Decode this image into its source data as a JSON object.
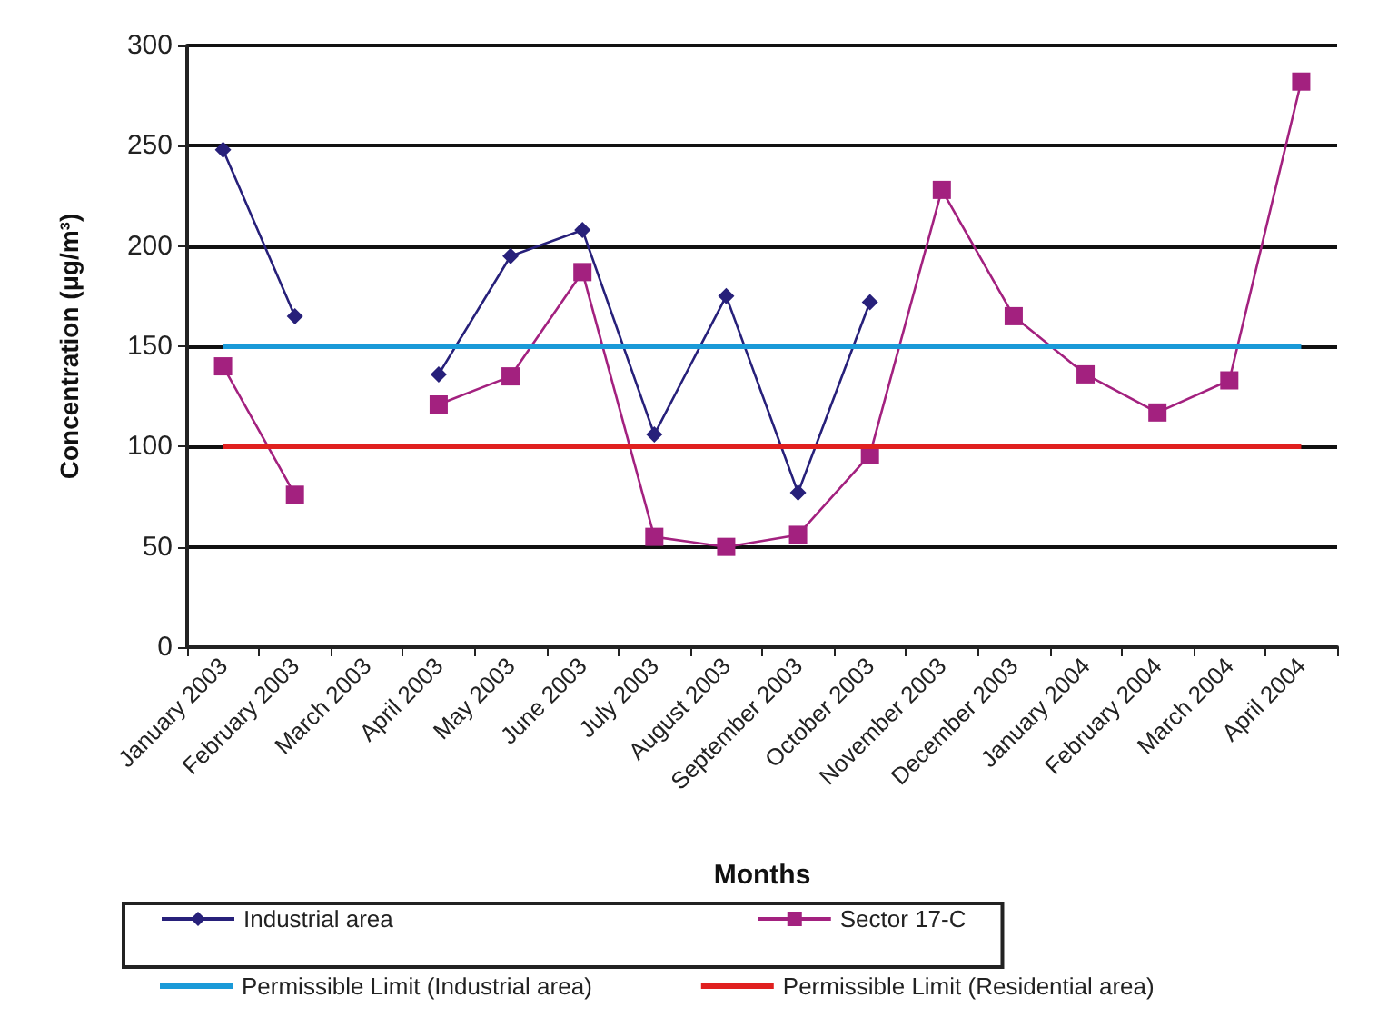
{
  "chart_data": {
    "type": "line",
    "xlabel": "Months",
    "ylabel": "Concentration (μg/m³)",
    "categories": [
      "January 2003",
      "February 2003",
      "March 2003",
      "April 2003",
      "May 2003",
      "June 2003",
      "July 2003",
      "August 2003",
      "September 2003",
      "October 2003",
      "November 2003",
      "December 2003",
      "January 2004",
      "February 2004",
      "March 2004",
      "April 2004"
    ],
    "series": [
      {
        "name": "Industrial area",
        "color": "#27207a",
        "marker": "diamond",
        "values": [
          248,
          165,
          null,
          136,
          195,
          208,
          106,
          175,
          77,
          172,
          null,
          null,
          null,
          null,
          null,
          null
        ]
      },
      {
        "name": "Sector 17-C",
        "color": "#a3217f",
        "marker": "square",
        "values": [
          140,
          76,
          null,
          121,
          135,
          187,
          55,
          50,
          56,
          96,
          228,
          165,
          136,
          117,
          133,
          282
        ]
      }
    ],
    "ref_lines": [
      {
        "axis": "y",
        "value": 150,
        "label": "Permissible Limit (Industrial area)",
        "color": "#1a9ad8"
      },
      {
        "axis": "y",
        "value": 100,
        "label": "Permissible Limit (Residential area)",
        "color": "#e0201f"
      }
    ],
    "ylim": [
      0,
      300
    ],
    "yticks": [
      0,
      50,
      100,
      150,
      200,
      250,
      300
    ],
    "grid": "y",
    "legend": "bottom"
  }
}
